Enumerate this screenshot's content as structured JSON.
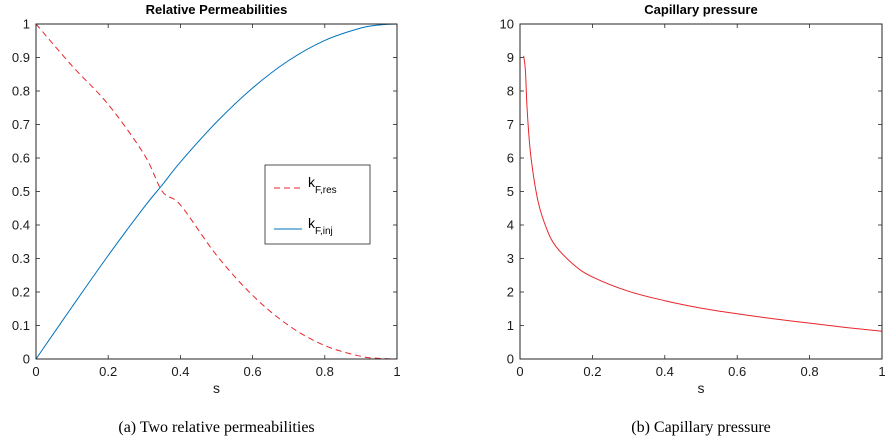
{
  "chart_data": [
    {
      "type": "line",
      "title": "Relative Permeabilities",
      "xlabel": "s",
      "ylabel": "",
      "xlim": [
        0,
        1
      ],
      "ylim": [
        0,
        1
      ],
      "xticks": [
        "0",
        "0.2",
        "0.4",
        "0.6",
        "0.8",
        "1"
      ],
      "yticks": [
        "0",
        "0.1",
        "0.2",
        "0.3",
        "0.4",
        "0.5",
        "0.6",
        "0.7",
        "0.8",
        "0.9",
        "1"
      ],
      "grid": false,
      "legend_position": "right",
      "series": [
        {
          "name_main": "k",
          "name_sub": "F,res",
          "color": "#e8262b",
          "style": "dashed",
          "x": [
            0,
            0.1,
            0.2,
            0.3,
            0.35,
            0.4,
            0.5,
            0.6,
            0.7,
            0.8,
            0.9,
            0.95,
            1
          ],
          "y": [
            1,
            0.875,
            0.76,
            0.61,
            0.5,
            0.46,
            0.31,
            0.19,
            0.1,
            0.04,
            0.008,
            0.002,
            0
          ]
        },
        {
          "name_main": "k",
          "name_sub": "F,inj",
          "color": "#0072bd",
          "style": "solid",
          "x": [
            0,
            0.1,
            0.2,
            0.3,
            0.35,
            0.4,
            0.5,
            0.6,
            0.7,
            0.8,
            0.9,
            0.95,
            1
          ],
          "y": [
            0,
            0.156,
            0.309,
            0.454,
            0.52,
            0.588,
            0.707,
            0.809,
            0.891,
            0.951,
            0.988,
            0.997,
            1
          ]
        }
      ]
    },
    {
      "type": "line",
      "title": "Capillary pressure",
      "xlabel": "s",
      "ylabel": "",
      "xlim": [
        0,
        1
      ],
      "ylim": [
        0,
        10
      ],
      "xticks": [
        "0",
        "0.2",
        "0.4",
        "0.6",
        "0.8",
        "1"
      ],
      "yticks": [
        "0",
        "1",
        "2",
        "3",
        "4",
        "5",
        "6",
        "7",
        "8",
        "9",
        "10"
      ],
      "grid": false,
      "series": [
        {
          "color": "#e8262b",
          "style": "solid",
          "x": [
            0.01,
            0.015,
            0.02,
            0.03,
            0.05,
            0.075,
            0.1,
            0.15,
            0.2,
            0.3,
            0.4,
            0.5,
            0.6,
            0.7,
            0.8,
            0.9,
            1
          ],
          "y": [
            9.05,
            8.6,
            7.4,
            6.05,
            4.7,
            3.85,
            3.35,
            2.8,
            2.45,
            2.02,
            1.74,
            1.52,
            1.35,
            1.2,
            1.07,
            0.94,
            0.83
          ]
        }
      ]
    }
  ],
  "captions": {
    "left": "(a) Two relative permeabilities",
    "right": "(b) Capillary pressure"
  }
}
